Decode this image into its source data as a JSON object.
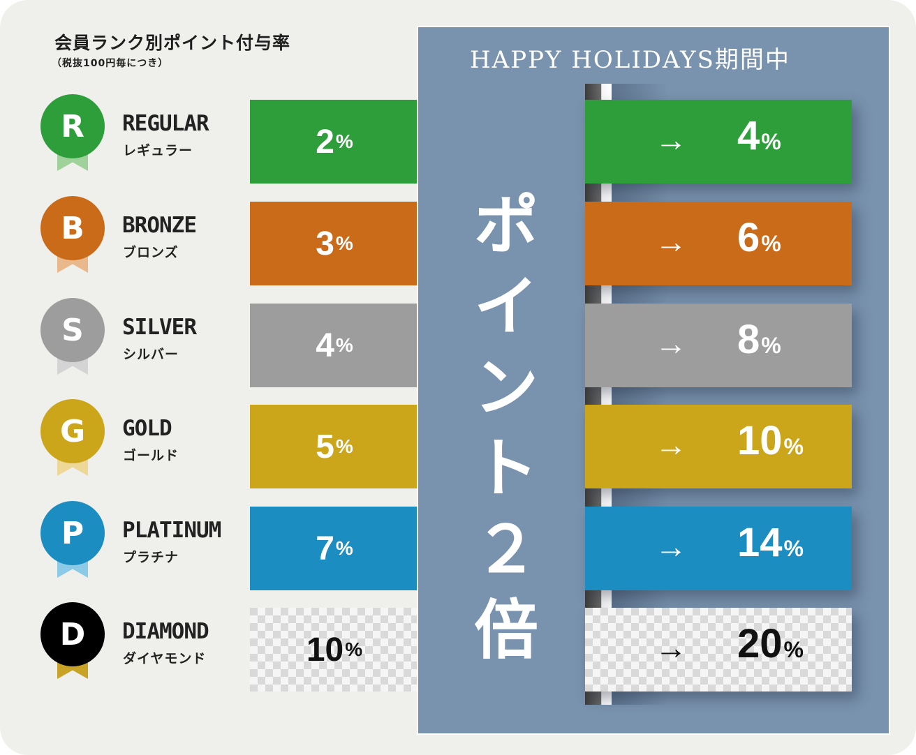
{
  "title": "会員ランク別ポイント付与率",
  "subtitle": "（税抜100円毎につき）",
  "campaign": "HAPPY HOLIDAYS期間中",
  "campaign_vertical": [
    "ポ",
    "イ",
    "ン",
    "ト",
    "２",
    "倍"
  ],
  "arrow": "→",
  "percent_sign": "%",
  "ranks": [
    {
      "letter": "R",
      "name_en": "REGULAR",
      "name_jp": "レギュラー",
      "base": "2",
      "campaign": "4",
      "color": "#2e9e3b",
      "ribbon": "#9fd29b"
    },
    {
      "letter": "B",
      "name_en": "BRONZE",
      "name_jp": "ブロンズ",
      "base": "3",
      "campaign": "6",
      "color": "#c96b19",
      "ribbon": "#e9b98c"
    },
    {
      "letter": "S",
      "name_en": "SILVER",
      "name_jp": "シルバー",
      "base": "4",
      "campaign": "8",
      "color": "#9d9d9d",
      "ribbon": "#d4d4d4"
    },
    {
      "letter": "G",
      "name_en": "GOLD",
      "name_jp": "ゴールド",
      "base": "5",
      "campaign": "10",
      "color": "#cba51a",
      "ribbon": "#eed897"
    },
    {
      "letter": "P",
      "name_en": "PLATINUM",
      "name_jp": "プラチナ",
      "base": "7",
      "campaign": "14",
      "color": "#1b8dc0",
      "ribbon": "#8bcbe8"
    },
    {
      "letter": "D",
      "name_en": "DIAMOND",
      "name_jp": "ダイヤモンド",
      "base": "10",
      "campaign": "20",
      "color": "#000000",
      "ribbon": "#c8a325"
    }
  ]
}
